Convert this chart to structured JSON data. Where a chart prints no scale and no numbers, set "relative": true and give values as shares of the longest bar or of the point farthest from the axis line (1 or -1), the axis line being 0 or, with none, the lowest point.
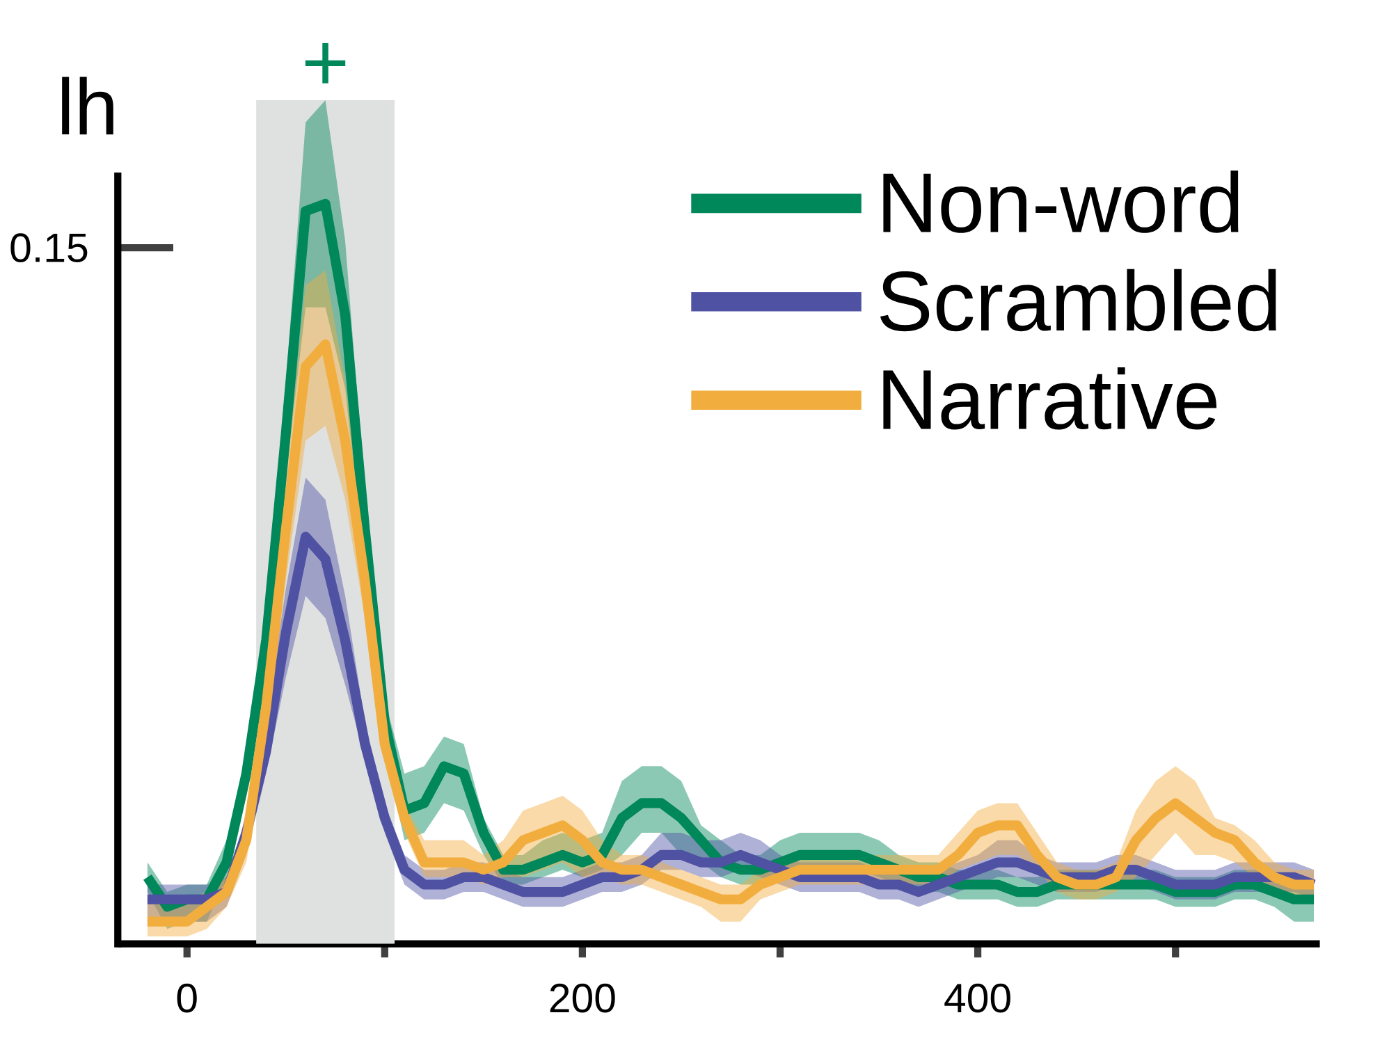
{
  "chart_data": {
    "type": "line",
    "title": "lh",
    "relative": true,
    "tick_labels": "x",
    "legend": "top right",
    "xlim": [
      -35,
      573
    ],
    "xticks": [
      0,
      {
        "value": 100,
        "label": null
      },
      200,
      {
        "value": 300,
        "label": null
      },
      400,
      {
        "value": 500,
        "label": null
      }
    ],
    "x": [
      -20,
      -10,
      0,
      10,
      20,
      30,
      40,
      50,
      60,
      70,
      80,
      90,
      100,
      110,
      120,
      130,
      140,
      150,
      160,
      170,
      180,
      190,
      200,
      210,
      220,
      230,
      240,
      250,
      260,
      270,
      280,
      290,
      300,
      310,
      320,
      330,
      340,
      350,
      360,
      370,
      380,
      390,
      400,
      410,
      420,
      430,
      440,
      450,
      460,
      470,
      480,
      490,
      500,
      510,
      520,
      530,
      540,
      550,
      560,
      570
    ],
    "bands": [
      {
        "axis": "x",
        "from": 35,
        "to": 105,
        "color": "#dfe1e1"
      }
    ],
    "annotations": [
      "+",
      "0.15"
    ],
    "series": [
      {
        "name": "Non-word",
        "color": "#00875a",
        "values": [
          0.09,
          0.05,
          0.06,
          0.06,
          0.11,
          0.23,
          0.41,
          0.69,
          0.99,
          1,
          0.85,
          0.56,
          0.3,
          0.18,
          0.19,
          0.24,
          0.23,
          0.15,
          0.1,
          0.1,
          0.11,
          0.12,
          0.11,
          0.12,
          0.17,
          0.19,
          0.19,
          0.17,
          0.14,
          0.11,
          0.1,
          0.1,
          0.11,
          0.12,
          0.12,
          0.12,
          0.12,
          0.11,
          0.1,
          0.09,
          0.09,
          0.08,
          0.08,
          0.08,
          0.07,
          0.07,
          0.08,
          0.08,
          0.08,
          0.08,
          0.08,
          0.08,
          0.07,
          0.07,
          0.07,
          0.08,
          0.08,
          0.07,
          0.06,
          0.06
        ],
        "upper": [
          0.11,
          0.07,
          0.08,
          0.08,
          0.14,
          0.25,
          0.45,
          0.76,
          1.11,
          1.14,
          0.95,
          0.61,
          0.33,
          0.23,
          0.24,
          0.28,
          0.27,
          0.17,
          0.12,
          0.12,
          0.14,
          0.15,
          0.14,
          0.15,
          0.22,
          0.24,
          0.24,
          0.22,
          0.16,
          0.14,
          0.12,
          0.12,
          0.14,
          0.15,
          0.15,
          0.15,
          0.15,
          0.14,
          0.12,
          0.11,
          0.11,
          0.1,
          0.1,
          0.1,
          0.09,
          0.09,
          0.1,
          0.1,
          0.1,
          0.1,
          0.1,
          0.1,
          0.09,
          0.09,
          0.09,
          0.1,
          0.1,
          0.09,
          0.08,
          0.08
        ],
        "lower": [
          0.07,
          0.02,
          0.03,
          0.03,
          0.09,
          0.2,
          0.36,
          0.63,
          0.86,
          0.86,
          0.75,
          0.5,
          0.26,
          0.14,
          0.15,
          0.19,
          0.18,
          0.12,
          0.08,
          0.08,
          0.09,
          0.1,
          0.09,
          0.1,
          0.12,
          0.15,
          0.15,
          0.12,
          0.11,
          0.09,
          0.08,
          0.08,
          0.09,
          0.1,
          0.1,
          0.1,
          0.1,
          0.09,
          0.08,
          0.07,
          0.07,
          0.06,
          0.06,
          0.06,
          0.05,
          0.05,
          0.06,
          0.06,
          0.06,
          0.06,
          0.06,
          0.06,
          0.05,
          0.05,
          0.05,
          0.06,
          0.06,
          0.05,
          0.03,
          0.03
        ]
      },
      {
        "name": "Scrambled",
        "color": "#4f51a3",
        "values": [
          0.06,
          0.06,
          0.06,
          0.06,
          0.07,
          0.15,
          0.26,
          0.42,
          0.55,
          0.52,
          0.41,
          0.27,
          0.17,
          0.1,
          0.08,
          0.08,
          0.09,
          0.09,
          0.08,
          0.07,
          0.07,
          0.07,
          0.08,
          0.09,
          0.09,
          0.1,
          0.12,
          0.12,
          0.11,
          0.11,
          0.12,
          0.11,
          0.1,
          0.09,
          0.09,
          0.09,
          0.09,
          0.08,
          0.08,
          0.07,
          0.08,
          0.09,
          0.1,
          0.11,
          0.11,
          0.1,
          0.09,
          0.09,
          0.09,
          0.1,
          0.1,
          0.09,
          0.08,
          0.08,
          0.08,
          0.09,
          0.09,
          0.09,
          0.09,
          0.08
        ],
        "upper": [
          0.08,
          0.08,
          0.08,
          0.08,
          0.09,
          0.17,
          0.3,
          0.48,
          0.63,
          0.6,
          0.47,
          0.3,
          0.19,
          0.12,
          0.1,
          0.1,
          0.11,
          0.11,
          0.1,
          0.09,
          0.09,
          0.09,
          0.1,
          0.11,
          0.11,
          0.12,
          0.15,
          0.15,
          0.14,
          0.14,
          0.15,
          0.14,
          0.12,
          0.11,
          0.11,
          0.11,
          0.11,
          0.1,
          0.1,
          0.09,
          0.1,
          0.11,
          0.12,
          0.14,
          0.14,
          0.12,
          0.11,
          0.11,
          0.11,
          0.12,
          0.12,
          0.11,
          0.1,
          0.1,
          0.1,
          0.11,
          0.11,
          0.11,
          0.11,
          0.1
        ],
        "lower": [
          0.03,
          0.03,
          0.03,
          0.03,
          0.05,
          0.12,
          0.23,
          0.36,
          0.47,
          0.44,
          0.35,
          0.25,
          0.15,
          0.08,
          0.06,
          0.06,
          0.07,
          0.07,
          0.06,
          0.05,
          0.05,
          0.05,
          0.06,
          0.07,
          0.07,
          0.08,
          0.1,
          0.1,
          0.09,
          0.09,
          0.1,
          0.09,
          0.08,
          0.07,
          0.07,
          0.07,
          0.07,
          0.06,
          0.06,
          0.05,
          0.06,
          0.07,
          0.08,
          0.09,
          0.09,
          0.08,
          0.07,
          0.07,
          0.07,
          0.08,
          0.08,
          0.07,
          0.06,
          0.06,
          0.06,
          0.07,
          0.07,
          0.07,
          0.07,
          0.06
        ]
      },
      {
        "name": "Narrative",
        "color": "#f2ad3f",
        "values": [
          0.03,
          0.03,
          0.03,
          0.05,
          0.07,
          0.14,
          0.32,
          0.56,
          0.78,
          0.81,
          0.68,
          0.49,
          0.27,
          0.17,
          0.11,
          0.11,
          0.11,
          0.1,
          0.11,
          0.14,
          0.15,
          0.16,
          0.14,
          0.11,
          0.1,
          0.1,
          0.09,
          0.08,
          0.07,
          0.06,
          0.06,
          0.08,
          0.09,
          0.1,
          0.1,
          0.1,
          0.1,
          0.1,
          0.1,
          0.1,
          0.1,
          0.12,
          0.15,
          0.16,
          0.16,
          0.12,
          0.09,
          0.08,
          0.08,
          0.09,
          0.14,
          0.17,
          0.19,
          0.17,
          0.15,
          0.14,
          0.11,
          0.09,
          0.08,
          0.08
        ],
        "upper": [
          0.06,
          0.06,
          0.06,
          0.07,
          0.09,
          0.16,
          0.36,
          0.63,
          0.89,
          0.91,
          0.76,
          0.53,
          0.3,
          0.19,
          0.14,
          0.14,
          0.14,
          0.12,
          0.14,
          0.18,
          0.19,
          0.2,
          0.18,
          0.14,
          0.12,
          0.12,
          0.11,
          0.1,
          0.09,
          0.08,
          0.08,
          0.1,
          0.11,
          0.12,
          0.12,
          0.12,
          0.12,
          0.12,
          0.12,
          0.12,
          0.12,
          0.15,
          0.18,
          0.19,
          0.19,
          0.15,
          0.11,
          0.1,
          0.1,
          0.11,
          0.18,
          0.22,
          0.24,
          0.22,
          0.17,
          0.16,
          0.14,
          0.11,
          0.1,
          0.1
        ],
        "lower": [
          0.01,
          0.01,
          0.01,
          0.02,
          0.05,
          0.11,
          0.27,
          0.49,
          0.68,
          0.7,
          0.6,
          0.44,
          0.25,
          0.15,
          0.09,
          0.09,
          0.09,
          0.08,
          0.09,
          0.09,
          0.1,
          0.11,
          0.09,
          0.09,
          0.08,
          0.08,
          0.07,
          0.06,
          0.05,
          0.03,
          0.03,
          0.06,
          0.07,
          0.08,
          0.08,
          0.08,
          0.08,
          0.08,
          0.08,
          0.08,
          0.08,
          0.1,
          0.11,
          0.12,
          0.12,
          0.1,
          0.07,
          0.06,
          0.06,
          0.07,
          0.09,
          0.12,
          0.15,
          0.12,
          0.12,
          0.11,
          0.09,
          0.07,
          0.06,
          0.06
        ]
      }
    ]
  }
}
